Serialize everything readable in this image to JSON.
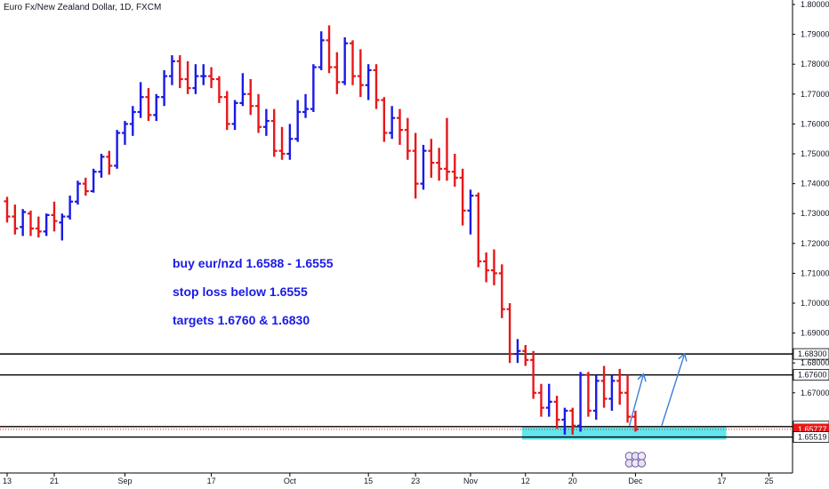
{
  "header": {
    "title": "Euro Fx/New Zealand Dollar, 1D, FXCM"
  },
  "annotations": {
    "line1": "buy eur/nzd 1.6588 - 1.6555",
    "line2": "stop loss below 1.6555",
    "line3": "targets 1.6760 & 1.6830"
  },
  "colors": {
    "up_bar": "#1a1ae6",
    "down_bar": "#e6181b",
    "zone_fill": "#47e0e8",
    "level_line": "#000000",
    "arrow": "#3c7fd8",
    "text_blue": "#1a1ae6",
    "last_price_tag": "#e6181b"
  },
  "chart_data": {
    "type": "ohlc",
    "title": "Euro Fx/New Zealand Dollar, 1D, FXCM",
    "ylim": [
      1.65,
      1.8
    ],
    "y_ticks": [
      "1.80000",
      "1.79000",
      "1.78000",
      "1.77000",
      "1.76000",
      "1.75000",
      "1.74000",
      "1.73000",
      "1.72000",
      "1.71000",
      "1.70000",
      "1.69000",
      "1.68000",
      "1.67000"
    ],
    "x_ticks": [
      {
        "label": "13",
        "bar": 0
      },
      {
        "label": "21",
        "bar": 6
      },
      {
        "label": "Sep",
        "bar": 15
      },
      {
        "label": "17",
        "bar": 26
      },
      {
        "label": "Oct",
        "bar": 36
      },
      {
        "label": "15",
        "bar": 46
      },
      {
        "label": "23",
        "bar": 52
      },
      {
        "label": "Nov",
        "bar": 59
      },
      {
        "label": "12",
        "bar": 66
      },
      {
        "label": "20",
        "bar": 72
      },
      {
        "label": "Dec",
        "bar": 80
      },
      {
        "label": "17",
        "bar": 91
      },
      {
        "label": "25",
        "bar": 97
      }
    ],
    "levels": [
      {
        "value": 1.683,
        "label": "1.68300"
      },
      {
        "value": 1.676,
        "label": "1.67600"
      },
      {
        "value": 1.6587,
        "label": "1.65872"
      },
      {
        "value": 1.6552,
        "label": "1.65519"
      }
    ],
    "last_price": {
      "value": 1.65777,
      "label": "1.65777"
    },
    "buy_zone": {
      "from": 1.6555,
      "to": 1.6588
    },
    "bars": [
      [
        1.7341,
        1.7356,
        1.727,
        1.729
      ],
      [
        1.729,
        1.733,
        1.723,
        1.725
      ],
      [
        1.7255,
        1.7315,
        1.7225,
        1.7305
      ],
      [
        1.73,
        1.731,
        1.7225,
        1.725
      ],
      [
        1.725,
        1.729,
        1.722,
        1.724
      ],
      [
        1.724,
        1.73,
        1.7225,
        1.7295
      ],
      [
        1.7295,
        1.734,
        1.724,
        1.7275
      ],
      [
        1.727,
        1.73,
        1.721,
        1.729
      ],
      [
        1.729,
        1.736,
        1.728,
        1.734
      ],
      [
        1.734,
        1.741,
        1.733,
        1.74
      ],
      [
        1.74,
        1.742,
        1.736,
        1.7375
      ],
      [
        1.7375,
        1.745,
        1.737,
        1.744
      ],
      [
        1.744,
        1.75,
        1.742,
        1.749
      ],
      [
        1.749,
        1.751,
        1.743,
        1.746
      ],
      [
        1.746,
        1.758,
        1.745,
        1.757
      ],
      [
        1.757,
        1.761,
        1.753,
        1.76
      ],
      [
        1.76,
        1.766,
        1.756,
        1.764
      ],
      [
        1.764,
        1.774,
        1.762,
        1.769
      ],
      [
        1.769,
        1.772,
        1.761,
        1.763
      ],
      [
        1.763,
        1.77,
        1.761,
        1.769
      ],
      [
        1.769,
        1.778,
        1.766,
        1.776
      ],
      [
        1.776,
        1.783,
        1.773,
        1.781
      ],
      [
        1.781,
        1.783,
        1.772,
        1.775
      ],
      [
        1.775,
        1.781,
        1.77,
        1.772
      ],
      [
        1.772,
        1.78,
        1.77,
        1.776
      ],
      [
        1.776,
        1.78,
        1.773,
        1.776
      ],
      [
        1.776,
        1.779,
        1.772,
        1.775
      ],
      [
        1.775,
        1.776,
        1.767,
        1.769
      ],
      [
        1.769,
        1.771,
        1.758,
        1.76
      ],
      [
        1.76,
        1.768,
        1.758,
        1.767
      ],
      [
        1.767,
        1.777,
        1.766,
        1.77
      ],
      [
        1.77,
        1.775,
        1.763,
        1.766
      ],
      [
        1.766,
        1.77,
        1.757,
        1.759
      ],
      [
        1.759,
        1.765,
        1.756,
        1.761
      ],
      [
        1.761,
        1.765,
        1.749,
        1.751
      ],
      [
        1.751,
        1.759,
        1.748,
        1.75
      ],
      [
        1.75,
        1.76,
        1.748,
        1.755
      ],
      [
        1.755,
        1.768,
        1.754,
        1.764
      ],
      [
        1.764,
        1.77,
        1.762,
        1.765
      ],
      [
        1.765,
        1.78,
        1.764,
        1.779
      ],
      [
        1.779,
        1.791,
        1.778,
        1.788
      ],
      [
        1.788,
        1.793,
        1.777,
        1.779
      ],
      [
        1.779,
        1.784,
        1.77,
        1.774
      ],
      [
        1.774,
        1.789,
        1.773,
        1.787
      ],
      [
        1.787,
        1.788,
        1.773,
        1.776
      ],
      [
        1.776,
        1.785,
        1.769,
        1.773
      ],
      [
        1.773,
        1.78,
        1.768,
        1.778
      ],
      [
        1.778,
        1.78,
        1.765,
        1.768
      ],
      [
        1.768,
        1.769,
        1.754,
        1.757
      ],
      [
        1.757,
        1.766,
        1.755,
        1.762
      ],
      [
        1.762,
        1.765,
        1.753,
        1.758
      ],
      [
        1.758,
        1.762,
        1.748,
        1.751
      ],
      [
        1.751,
        1.757,
        1.735,
        1.74
      ],
      [
        1.74,
        1.753,
        1.738,
        1.751
      ],
      [
        1.751,
        1.755,
        1.742,
        1.747
      ],
      [
        1.747,
        1.752,
        1.741,
        1.745
      ],
      [
        1.745,
        1.762,
        1.741,
        1.744
      ],
      [
        1.744,
        1.75,
        1.739,
        1.742
      ],
      [
        1.742,
        1.745,
        1.726,
        1.731
      ],
      [
        1.731,
        1.738,
        1.723,
        1.736
      ],
      [
        1.736,
        1.737,
        1.712,
        1.714
      ],
      [
        1.714,
        1.717,
        1.707,
        1.711
      ],
      [
        1.711,
        1.718,
        1.706,
        1.71
      ],
      [
        1.71,
        1.713,
        1.695,
        1.698
      ],
      [
        1.698,
        1.7,
        1.68,
        1.683
      ],
      [
        1.683,
        1.688,
        1.68,
        1.684
      ],
      [
        1.684,
        1.686,
        1.679,
        1.681
      ],
      [
        1.681,
        1.684,
        1.668,
        1.67
      ],
      [
        1.67,
        1.673,
        1.662,
        1.665
      ],
      [
        1.665,
        1.673,
        1.662,
        1.667
      ],
      [
        1.667,
        1.669,
        1.658,
        1.661
      ],
      [
        1.661,
        1.665,
        1.656,
        1.664
      ],
      [
        1.664,
        1.665,
        1.656,
        1.659
      ],
      [
        1.659,
        1.677,
        1.657,
        1.676
      ],
      [
        1.676,
        1.677,
        1.662,
        1.664
      ],
      [
        1.664,
        1.676,
        1.661,
        1.674
      ],
      [
        1.674,
        1.679,
        1.665,
        1.668
      ],
      [
        1.668,
        1.676,
        1.664,
        1.674
      ],
      [
        1.674,
        1.678,
        1.666,
        1.67
      ],
      [
        1.67,
        1.676,
        1.66,
        1.662
      ],
      [
        1.662,
        1.664,
        1.657,
        1.6578
      ]
    ]
  }
}
